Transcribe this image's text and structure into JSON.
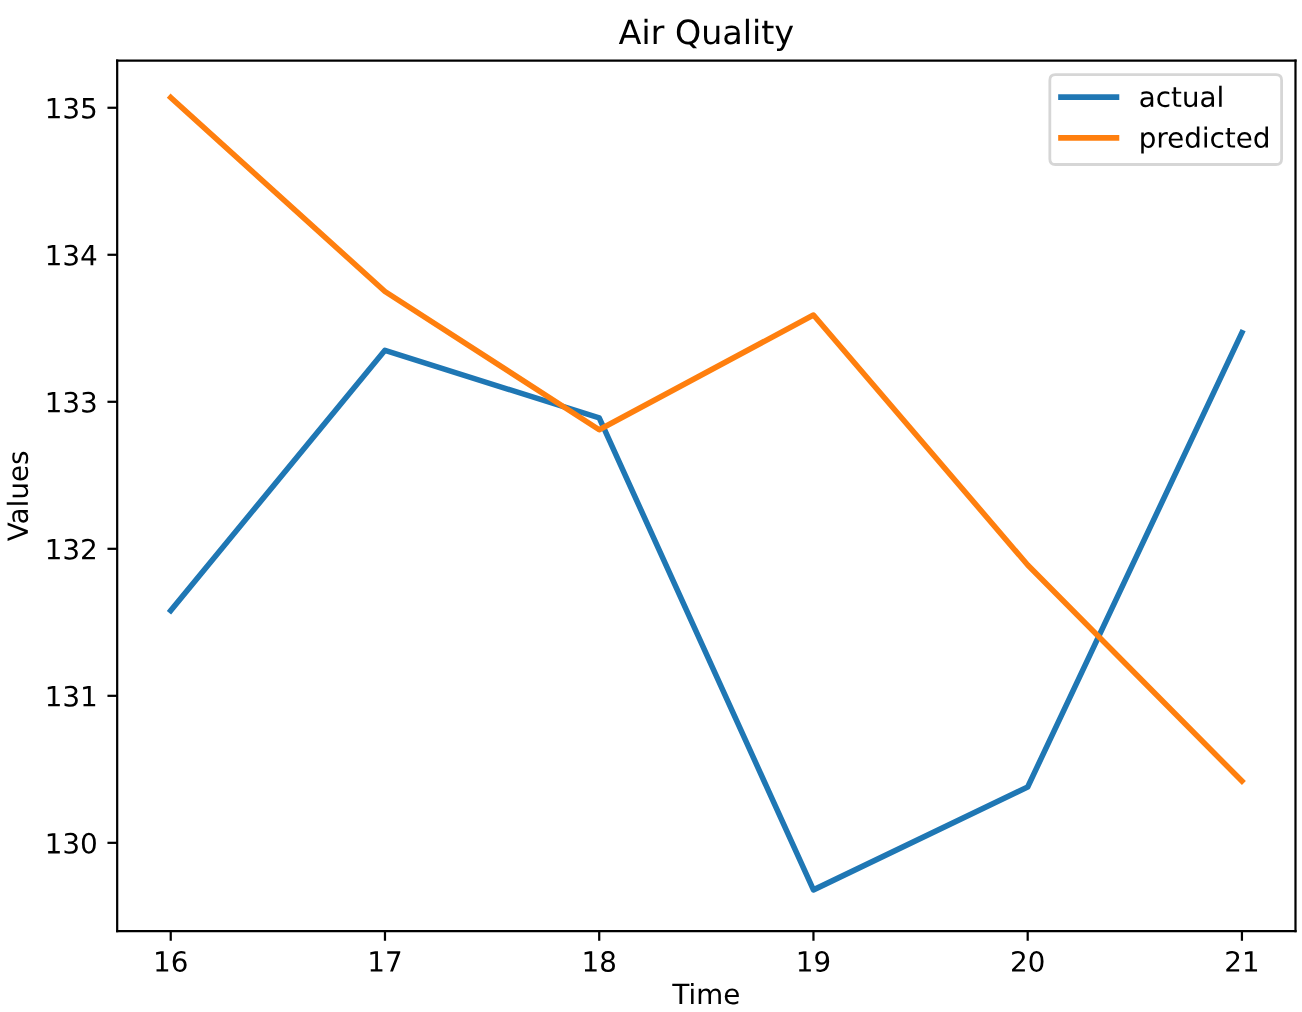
{
  "chart_data": {
    "type": "line",
    "title": "Air Quality",
    "xlabel": "Time",
    "ylabel": "Values",
    "x": [
      16,
      17,
      18,
      19,
      20,
      21
    ],
    "series": [
      {
        "name": "actual",
        "color": "#1f77b4",
        "values": [
          131.58,
          133.35,
          132.89,
          129.68,
          130.38,
          133.47
        ]
      },
      {
        "name": "predicted",
        "color": "#ff7f0e",
        "values": [
          135.07,
          133.75,
          132.81,
          133.59,
          131.89,
          130.42
        ]
      }
    ],
    "xlim": [
      15.75,
      21.25
    ],
    "ylim": [
      129.4,
      135.32
    ],
    "xticks": [
      16,
      17,
      18,
      19,
      20,
      21
    ],
    "yticks": [
      130,
      131,
      132,
      133,
      134,
      135
    ],
    "grid": false,
    "legend": "top right",
    "marker": "none",
    "line_style": "solid"
  }
}
